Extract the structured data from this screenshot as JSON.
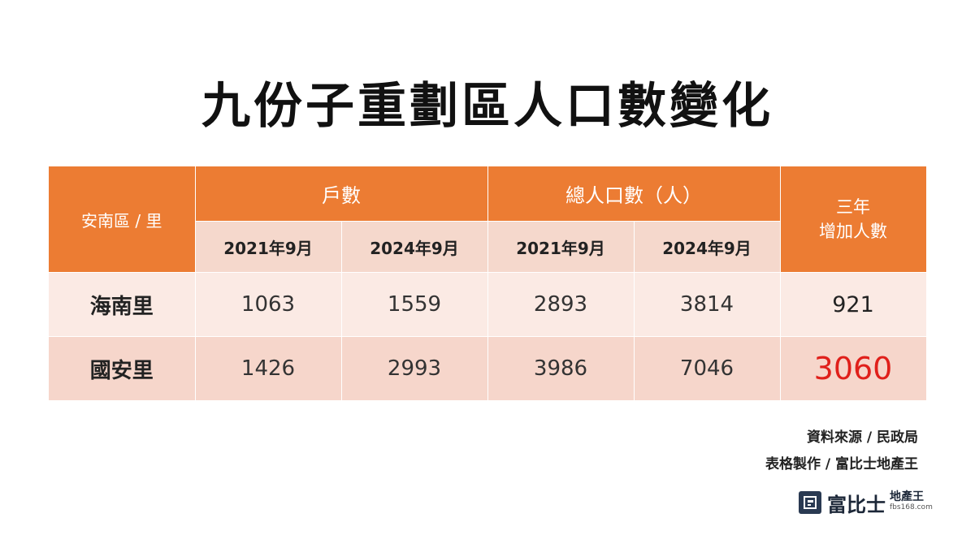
{
  "title": "九份子重劃區人口數變化",
  "table": {
    "side_header": "安南區 / 里",
    "group_households": "戶數",
    "group_population": "總人口數（人）",
    "increase_line1": "三年",
    "increase_line2": "增加人數",
    "sub_headers": [
      "2021年9月",
      "2024年9月",
      "2021年9月",
      "2024年9月"
    ],
    "rows": [
      {
        "name": "海南里",
        "hh_2021": "1063",
        "hh_2024": "1559",
        "pop_2021": "2893",
        "pop_2024": "3814",
        "increase": "921"
      },
      {
        "name": "國安里",
        "hh_2021": "1426",
        "hh_2024": "2993",
        "pop_2021": "3986",
        "pop_2024": "7046",
        "increase": "3060"
      }
    ]
  },
  "chart_data": {
    "type": "table",
    "title": "九份子重劃區人口數變化",
    "columns": [
      "安南區 / 里",
      "戶數 2021年9月",
      "戶數 2024年9月",
      "總人口數（人） 2021年9月",
      "總人口數（人） 2024年9月",
      "三年增加人數"
    ],
    "rows": [
      [
        "海南里",
        1063,
        1559,
        2893,
        3814,
        921
      ],
      [
        "國安里",
        1426,
        2993,
        3986,
        7046,
        3060
      ]
    ]
  },
  "notes": {
    "source": "資料來源 / 民政局",
    "maker": "表格製作 / 富比士地產王"
  },
  "logo": {
    "brand": "富比士",
    "sub": "地產王",
    "url": "fbs168.com"
  },
  "colors": {
    "header": "#ec7c33",
    "subheader": "#f5d8cc",
    "row1": "#fbeae4",
    "row2": "#f6d6cb",
    "highlight": "#e0201b"
  }
}
